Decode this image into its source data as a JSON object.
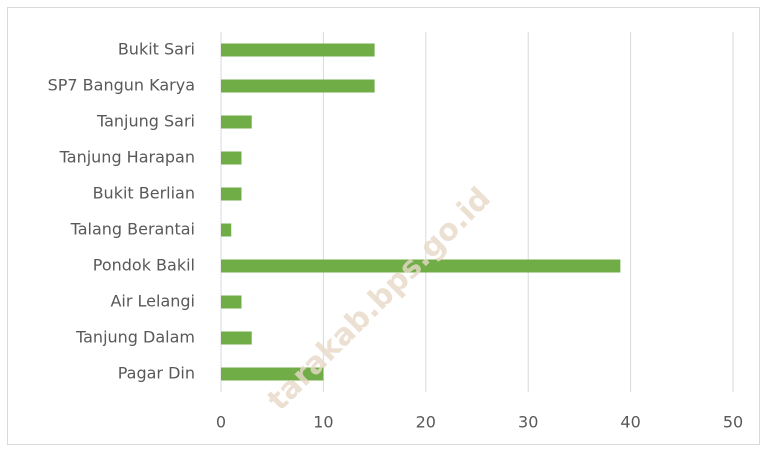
{
  "chart_data": {
    "type": "hbar",
    "categories": [
      "Bukit Sari",
      "SP7 Bangun Karya",
      "Tanjung Sari",
      "Tanjung Harapan",
      "Bukit Berlian",
      "Talang Berantai",
      "Pondok Bakil",
      "Air Lelangi",
      "Tanjung Dalam",
      "Pagar Din"
    ],
    "values": [
      15,
      15,
      3,
      2,
      2,
      1,
      39,
      2,
      3,
      10
    ],
    "color": "#70ad47",
    "xlim": [
      0,
      50
    ],
    "xticks": [
      0,
      10,
      20,
      30,
      40,
      50
    ],
    "grid": true,
    "watermark": "tarakab.bps.go.id"
  }
}
